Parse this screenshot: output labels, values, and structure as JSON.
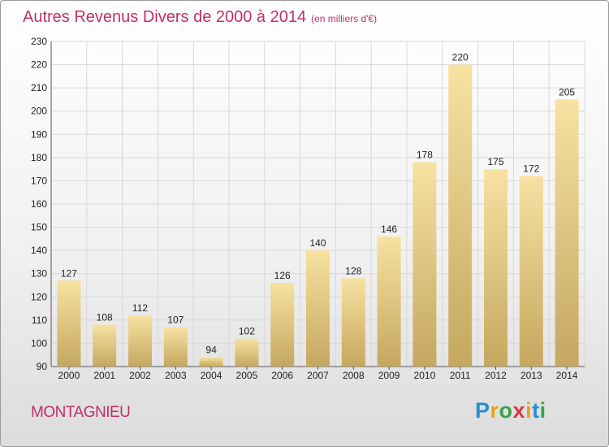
{
  "title": "Autres Revenus Divers de 2000 à 2014",
  "subtitle": "(en milliers d'€)",
  "commune": "MONTAGNIEU",
  "logo": {
    "text": "Proxiti",
    "letters": [
      {
        "ch": "P",
        "color": "#2a8fd0"
      },
      {
        "ch": "r",
        "color": "#e8a21c"
      },
      {
        "ch": "o",
        "color": "#3aa34a"
      },
      {
        "ch": "x",
        "color": "#d83a3a"
      },
      {
        "ch": "i",
        "color": "#e8a21c"
      },
      {
        "ch": "t",
        "color": "#2a8fd0"
      },
      {
        "ch": "i",
        "color": "#3aa34a"
      }
    ]
  },
  "colors": {
    "title": "#c0306a",
    "bar_light": "#f6df9c",
    "bar_dark": "#c9ab63",
    "grid": "#d8d8d8"
  },
  "chart_data": {
    "type": "bar",
    "title": "Autres Revenus Divers de 2000 à 2014",
    "subtitle": "(en milliers d'€)",
    "categories": [
      "2000",
      "2001",
      "2002",
      "2003",
      "2004",
      "2005",
      "2006",
      "2007",
      "2008",
      "2009",
      "2010",
      "2011",
      "2012",
      "2013",
      "2014"
    ],
    "values": [
      127,
      108,
      112,
      107,
      94,
      102,
      126,
      140,
      128,
      146,
      178,
      220,
      175,
      172,
      205
    ],
    "ylim": [
      90,
      230
    ],
    "yticks": [
      90,
      100,
      110,
      120,
      130,
      140,
      150,
      160,
      170,
      180,
      190,
      200,
      210,
      220,
      230
    ],
    "grid": true,
    "legend": "none"
  }
}
